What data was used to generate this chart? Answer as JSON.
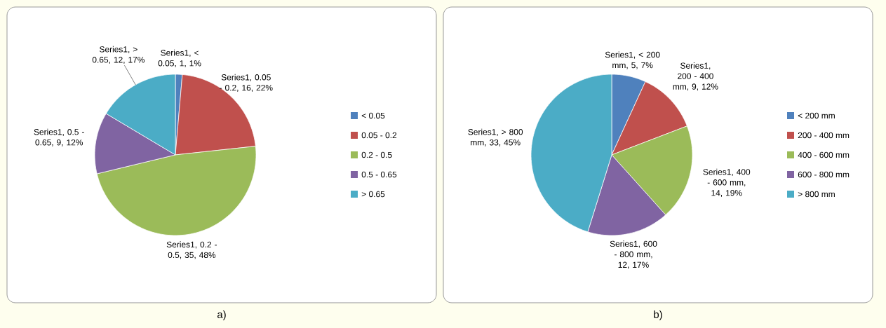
{
  "chart_data": [
    {
      "type": "pie",
      "categories": [
        "< 0.05",
        "0.05 - 0.2",
        "0.2 - 0.5",
        "0.5 - 0.65",
        "> 0.65"
      ],
      "values": [
        1,
        16,
        35,
        9,
        12
      ],
      "colors": [
        "#4f81bd",
        "#c0504d",
        "#9bbb59",
        "#8064a2",
        "#4bacc6"
      ],
      "value_labels": [
        "Series1, < 0.05, 1, 1%",
        "Series1, 0.05 - 0.2, 16, 22%",
        "Series1, 0.2 - 0.5, 35, 48%",
        "Series1, 0.5 - 0.65, 9, 12%",
        "Series1, > 0.65, 12, 17%"
      ],
      "legend": "right",
      "annotations": [
        "a)"
      ]
    },
    {
      "type": "pie",
      "categories": [
        "< 200 mm",
        "200 - 400 mm",
        "400 - 600 mm",
        "600 - 800 mm",
        "> 800 mm"
      ],
      "values": [
        5,
        9,
        14,
        12,
        33
      ],
      "colors": [
        "#4f81bd",
        "#c0504d",
        "#9bbb59",
        "#8064a2",
        "#4bacc6"
      ],
      "value_labels": [
        "Series1, < 200 mm, 5, 7%",
        "Series1, 200 - 400 mm, 9, 12%",
        "Series1, 400 - 600 mm, 14, 19%",
        "Series1, 600 - 800 mm, 12, 17%",
        "Series1, > 800 mm, 33, 45%"
      ],
      "legend": "right",
      "annotations": [
        "b)"
      ]
    }
  ]
}
